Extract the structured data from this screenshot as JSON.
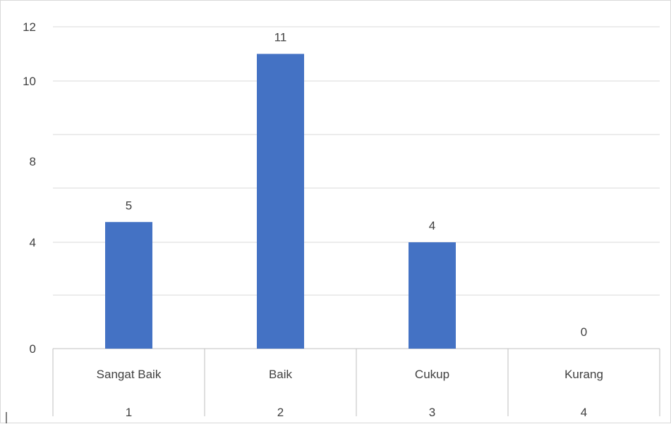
{
  "chart_data": {
    "type": "bar",
    "title": "",
    "xlabel": "",
    "ylabel": "",
    "categories": [
      "Sangat Baik",
      "Baik",
      "Cukup",
      "Kurang"
    ],
    "category_index_labels": [
      "1",
      "2",
      "3",
      "4"
    ],
    "values": [
      5,
      11,
      4,
      0
    ],
    "data_labels": [
      "5",
      "11",
      "4",
      "0"
    ],
    "ylim": [
      0,
      12
    ],
    "y_ticks": [
      0,
      4,
      8,
      10,
      12
    ],
    "y_tick_labels": [
      "0",
      "4",
      "8",
      "10",
      "12"
    ],
    "grid": true,
    "legend": "none",
    "colors": {
      "bar": "#4472C4",
      "grid": "#d9d9d9",
      "axis_text": "#404040",
      "axis_line": "#bfbfbf",
      "frame": "#d9d9d9"
    }
  }
}
